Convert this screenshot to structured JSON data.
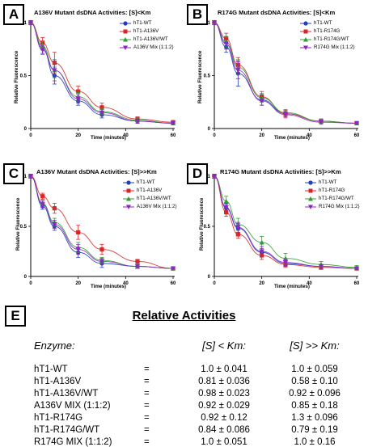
{
  "panels": [
    {
      "letter": "A",
      "title": "A136V Mutant dsDNA Activities: [S]<Km",
      "ylabel": "Relative Fluorescence",
      "xlabel": "Time (minutes)"
    },
    {
      "letter": "B",
      "title": "R174G Mutant dsDNA Activities: [S]<Km",
      "ylabel": "Relative Fluorescence",
      "xlabel": "Time (minutes)"
    },
    {
      "letter": "C",
      "title": "A136V Mutant dsDNA Activities: [S]>>Km",
      "ylabel": "Relative Fluorescence",
      "xlabel": "Time (minutes)"
    },
    {
      "letter": "D",
      "title": "R174G Mutant dsDNA Activities: [S]>>Km",
      "ylabel": "Relative Fluorescence",
      "xlabel": "Time (minutes)"
    }
  ],
  "chart_data": [
    {
      "type": "scatter",
      "title": "A136V Mutant dsDNA Activities: [S]<Km",
      "xlabel": "Time (minutes)",
      "ylabel": "Relative Fluorescence",
      "xlim": [
        0,
        60
      ],
      "ylim": [
        0,
        1
      ],
      "xticks": [
        0,
        20,
        40,
        60
      ],
      "yticks": [
        0,
        0.5,
        1.0
      ],
      "yticklabels": [
        "0",
        "0.5",
        "1"
      ],
      "legend_position": "top-right",
      "fit": "single exponential decay",
      "series": [
        {
          "name": "hT1-WT",
          "color": "#1f3fbf",
          "marker": "circle",
          "x": [
            0,
            5,
            10,
            20,
            30,
            45,
            60
          ],
          "y": [
            1.0,
            0.76,
            0.5,
            0.26,
            0.13,
            0.07,
            0.05
          ],
          "err": [
            0.02,
            0.05,
            0.08,
            0.04,
            0.03,
            0.02,
            0.01
          ]
        },
        {
          "name": "hT1-A136V",
          "color": "#d62828",
          "marker": "square",
          "x": [
            0,
            5,
            10,
            20,
            30,
            45,
            60
          ],
          "y": [
            1.0,
            0.81,
            0.62,
            0.35,
            0.2,
            0.09,
            0.06
          ],
          "err": [
            0.02,
            0.05,
            0.1,
            0.05,
            0.04,
            0.02,
            0.01
          ]
        },
        {
          "name": "hT1-A136V/WT",
          "color": "#2ca02c",
          "marker": "triangle-up",
          "x": [
            0,
            5,
            10,
            20,
            30,
            45,
            60
          ],
          "y": [
            1.0,
            0.78,
            0.55,
            0.3,
            0.16,
            0.08,
            0.05
          ],
          "err": [
            0.02,
            0.04,
            0.07,
            0.04,
            0.03,
            0.02,
            0.01
          ]
        },
        {
          "name": "A136V Mix (1:1:2)",
          "color": "#8e24c8",
          "marker": "triangle-down",
          "x": [
            0,
            5,
            10,
            20,
            30,
            45,
            60
          ],
          "y": [
            1.0,
            0.74,
            0.55,
            0.28,
            0.15,
            0.07,
            0.05
          ],
          "err": [
            0.02,
            0.04,
            0.1,
            0.04,
            0.03,
            0.02,
            0.01
          ]
        }
      ]
    },
    {
      "type": "scatter",
      "title": "R174G Mutant dsDNA Activities: [S]<Km",
      "xlabel": "Time (minutes)",
      "ylabel": "Relative Fluorescence",
      "xlim": [
        0,
        60
      ],
      "ylim": [
        0,
        1
      ],
      "xticks": [
        0,
        20,
        40,
        60
      ],
      "yticks": [
        0,
        0.5,
        1.0
      ],
      "yticklabels": [
        "0",
        "0.5",
        "1"
      ],
      "legend_position": "top-right",
      "fit": "single exponential decay",
      "series": [
        {
          "name": "hT1-WT",
          "color": "#1f3fbf",
          "marker": "circle",
          "x": [
            0,
            5,
            10,
            20,
            30,
            45,
            60
          ],
          "y": [
            1.0,
            0.77,
            0.52,
            0.27,
            0.14,
            0.07,
            0.05
          ],
          "err": [
            0.02,
            0.05,
            0.12,
            0.05,
            0.03,
            0.02,
            0.01
          ]
        },
        {
          "name": "hT1-R174G",
          "color": "#d62828",
          "marker": "square",
          "x": [
            0,
            5,
            10,
            20,
            30,
            45,
            60
          ],
          "y": [
            1.0,
            0.85,
            0.6,
            0.3,
            0.14,
            0.07,
            0.05
          ],
          "err": [
            0.02,
            0.05,
            0.07,
            0.05,
            0.03,
            0.02,
            0.01
          ]
        },
        {
          "name": "hT1-R174G/WT",
          "color": "#2ca02c",
          "marker": "triangle-up",
          "x": [
            0,
            5,
            10,
            20,
            30,
            45,
            60
          ],
          "y": [
            1.0,
            0.82,
            0.58,
            0.29,
            0.15,
            0.07,
            0.05
          ],
          "err": [
            0.02,
            0.05,
            0.07,
            0.04,
            0.03,
            0.02,
            0.01
          ]
        },
        {
          "name": "R174G Mix (1:1:2)",
          "color": "#8e24c8",
          "marker": "triangle-down",
          "x": [
            0,
            5,
            10,
            20,
            30,
            45,
            60
          ],
          "y": [
            1.0,
            0.8,
            0.55,
            0.26,
            0.13,
            0.06,
            0.05
          ],
          "err": [
            0.02,
            0.05,
            0.08,
            0.04,
            0.03,
            0.02,
            0.01
          ]
        }
      ]
    },
    {
      "type": "scatter",
      "title": "A136V Mutant dsDNA Activities: [S]>>Km",
      "xlabel": "Time (minutes)",
      "ylabel": "Relative Fluorescence",
      "xlim": [
        0,
        60
      ],
      "ylim": [
        0,
        1
      ],
      "xticks": [
        0,
        20,
        40,
        60
      ],
      "yticks": [
        0,
        0.5,
        1.0
      ],
      "yticklabels": [
        "0",
        "0.5",
        "1"
      ],
      "legend_position": "top-right",
      "fit": "single exponential decay",
      "series": [
        {
          "name": "hT1-WT",
          "color": "#1f3fbf",
          "marker": "circle",
          "x": [
            0,
            5,
            10,
            20,
            30,
            45,
            60
          ],
          "y": [
            1.0,
            0.7,
            0.5,
            0.24,
            0.13,
            0.1,
            0.08
          ],
          "err": [
            0.02,
            0.03,
            0.04,
            0.05,
            0.04,
            0.02,
            0.01
          ]
        },
        {
          "name": "hT1-A136V",
          "color": "#d62828",
          "marker": "square",
          "x": [
            0,
            5,
            10,
            20,
            30,
            45,
            60
          ],
          "y": [
            1.0,
            0.8,
            0.68,
            0.44,
            0.27,
            0.15,
            0.08
          ],
          "err": [
            0.02,
            0.03,
            0.05,
            0.07,
            0.05,
            0.02,
            0.01
          ]
        },
        {
          "name": "hT1-A136V/WT",
          "color": "#2ca02c",
          "marker": "triangle-up",
          "x": [
            0,
            5,
            10,
            20,
            30,
            45,
            60
          ],
          "y": [
            1.0,
            0.73,
            0.54,
            0.29,
            0.16,
            0.1,
            0.08
          ],
          "err": [
            0.02,
            0.03,
            0.04,
            0.05,
            0.03,
            0.02,
            0.01
          ]
        },
        {
          "name": "A136V Mix (1:1:2)",
          "color": "#8e24c8",
          "marker": "triangle-down",
          "x": [
            0,
            5,
            10,
            20,
            30,
            45,
            60
          ],
          "y": [
            1.0,
            0.72,
            0.52,
            0.27,
            0.15,
            0.1,
            0.08
          ],
          "err": [
            0.02,
            0.03,
            0.04,
            0.05,
            0.03,
            0.02,
            0.01
          ]
        }
      ]
    },
    {
      "type": "scatter",
      "title": "R174G Mutant dsDNA Activities: [S]>>Km",
      "xlabel": "Time (minutes)",
      "ylabel": "Relative Fluorescence",
      "xlim": [
        0,
        60
      ],
      "ylim": [
        0,
        1
      ],
      "xticks": [
        0,
        20,
        40,
        60
      ],
      "yticks": [
        0,
        0.5,
        1.0
      ],
      "yticklabels": [
        "0",
        "0.5",
        "1"
      ],
      "legend_position": "top-right",
      "fit": "single exponential decay",
      "series": [
        {
          "name": "hT1-WT",
          "color": "#1f3fbf",
          "marker": "circle",
          "x": [
            0,
            5,
            10,
            20,
            30,
            45,
            60
          ],
          "y": [
            1.0,
            0.68,
            0.48,
            0.24,
            0.13,
            0.1,
            0.08
          ],
          "err": [
            0.02,
            0.04,
            0.05,
            0.04,
            0.03,
            0.02,
            0.01
          ]
        },
        {
          "name": "hT1-R174G",
          "color": "#d62828",
          "marker": "square",
          "x": [
            0,
            5,
            10,
            20,
            30,
            45,
            60
          ],
          "y": [
            1.0,
            0.64,
            0.42,
            0.21,
            0.12,
            0.09,
            0.08
          ],
          "err": [
            0.02,
            0.04,
            0.04,
            0.04,
            0.03,
            0.02,
            0.01
          ]
        },
        {
          "name": "hT1-R174G/WT",
          "color": "#2ca02c",
          "marker": "triangle-up",
          "x": [
            0,
            5,
            10,
            20,
            30,
            45,
            60
          ],
          "y": [
            1.0,
            0.75,
            0.52,
            0.34,
            0.18,
            0.12,
            0.09
          ],
          "err": [
            0.02,
            0.05,
            0.06,
            0.06,
            0.05,
            0.03,
            0.02
          ]
        },
        {
          "name": "R174G Mix (1:1:2)",
          "color": "#8e24c8",
          "marker": "triangle-down",
          "x": [
            0,
            5,
            10,
            20,
            30,
            45,
            60
          ],
          "y": [
            1.0,
            0.69,
            0.49,
            0.25,
            0.14,
            0.1,
            0.08
          ],
          "err": [
            0.02,
            0.04,
            0.05,
            0.05,
            0.03,
            0.02,
            0.01
          ]
        }
      ]
    }
  ],
  "relative_activities": {
    "letter": "E",
    "title": "Relative Activities",
    "headers": [
      "Enzyme:",
      "[S] < Km:",
      "[S] >> Km:"
    ],
    "equals": "=",
    "rows": [
      {
        "enzyme": "hT1-WT",
        "low": "1.0 ± 0.041",
        "high": "1.0 ± 0.059"
      },
      {
        "enzyme": "hT1-A136V",
        "low": "0.81 ± 0.036",
        "high": "0.58 ± 0.10"
      },
      {
        "enzyme": "hT1-A136V/WT",
        "low": "0.98 ± 0.023",
        "high": "0.92 ± 0.096"
      },
      {
        "enzyme": "A136V MIX (1:1:2)",
        "low": "0.92 ± 0.029",
        "high": "0.85 ± 0.18"
      },
      {
        "enzyme": "hT1-R174G",
        "low": "0.92 ± 0.12",
        "high": "1.3 ± 0.096"
      },
      {
        "enzyme": "hT1-R174G/WT",
        "low": "0.84 ± 0.086",
        "high": "0.79 ± 0.19"
      },
      {
        "enzyme": "R174G MIX (1:1:2)",
        "low": "1.0 ± 0.051",
        "high": "1.0 ± 0.16"
      }
    ]
  }
}
